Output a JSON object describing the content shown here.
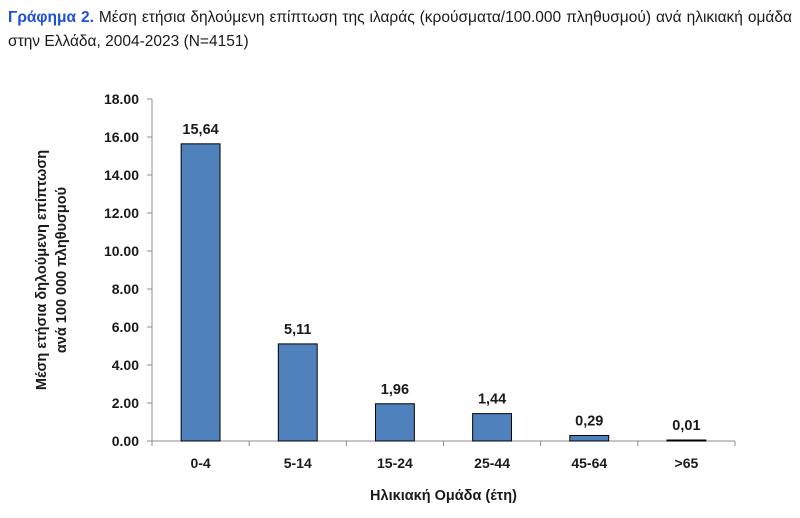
{
  "caption": {
    "lead": "Γράφημα 2.",
    "text": "Μέση ετήσια δηλούμενη επίπτωση της ιλαράς (κρούσματα/100.000 πληθυσμού) ανά ηλικιακή ομάδα στην Ελλάδα, 2004-2023 (N=4151)"
  },
  "chart_data": {
    "type": "bar",
    "title": "",
    "categories": [
      "0-4",
      "5-14",
      "15-24",
      "25-44",
      "45-64",
      ">65"
    ],
    "values": [
      15.64,
      5.11,
      1.96,
      1.44,
      0.29,
      0.01
    ],
    "data_labels": [
      "15,64",
      "5,11",
      "1,96",
      "1,44",
      "0,29",
      "0,01"
    ],
    "xlabel": "Ηλικιακή Ομάδα (έτη)",
    "ylabel_lines": [
      "Μέση ετήσια δηλούμενη επίπτωση",
      "ανά 100 000 πληθυσμού"
    ],
    "ylim": [
      0,
      18
    ],
    "yticks": [
      "0.00",
      "2.00",
      "4.00",
      "6.00",
      "8.00",
      "10.00",
      "12.00",
      "14.00",
      "16.00",
      "18.00"
    ],
    "bar_color": "#4f81bd",
    "bar_edge_color": "#000000",
    "grid": false,
    "legend": false
  }
}
